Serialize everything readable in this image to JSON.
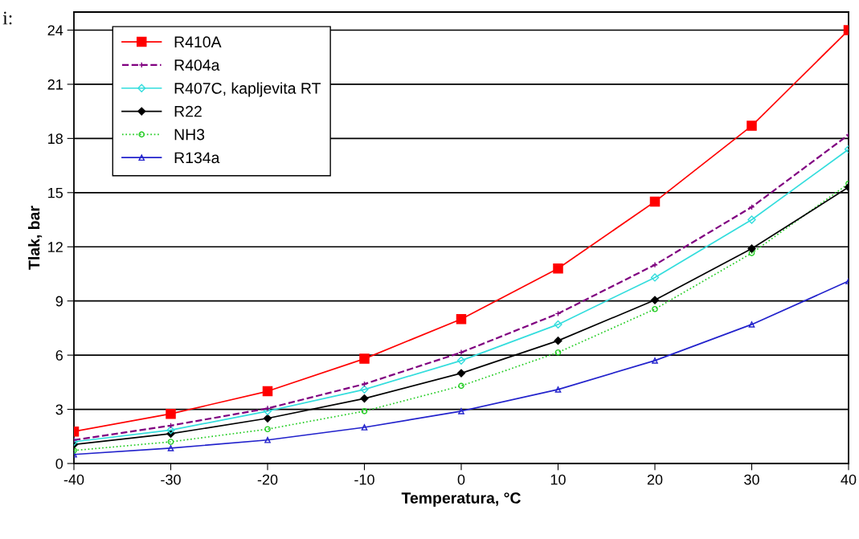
{
  "chart_data": {
    "type": "line",
    "xlabel": "Temperatura, °C",
    "ylabel": "Tlak, bar",
    "x": [
      -40,
      -30,
      -20,
      -10,
      0,
      10,
      20,
      30,
      40
    ],
    "xlim": [
      -40,
      40
    ],
    "xticks": [
      -40,
      -30,
      -20,
      -10,
      0,
      10,
      20,
      30,
      40
    ],
    "ylim": [
      0,
      25
    ],
    "yticks": [
      0,
      3,
      6,
      9,
      12,
      15,
      18,
      21,
      24
    ],
    "grid": "y",
    "legend": "top left",
    "annotations": [
      "i:"
    ],
    "series": [
      {
        "name": "R410A",
        "color": "#ff0000",
        "marker": "square",
        "line_style": "solid",
        "values": [
          1.77,
          2.75,
          4.0,
          5.8,
          8.0,
          10.8,
          14.5,
          18.7,
          24.0
        ]
      },
      {
        "name": "R404a",
        "color": "#800080",
        "marker": "cross",
        "line_style": "dashed",
        "values": [
          1.3,
          2.1,
          3.05,
          4.4,
          6.15,
          8.3,
          11.0,
          14.2,
          18.2
        ]
      },
      {
        "name": "R407C, kapljevita RT",
        "color": "#33dddd",
        "marker": "diamond",
        "line_style": "solid",
        "values": [
          1.2,
          1.85,
          2.9,
          4.1,
          5.7,
          7.7,
          10.3,
          13.5,
          17.4
        ]
      },
      {
        "name": "R22",
        "color": "#000000",
        "marker": "diamond",
        "line_style": "solid",
        "values": [
          1.05,
          1.65,
          2.5,
          3.6,
          5.0,
          6.8,
          9.05,
          11.9,
          15.3
        ]
      },
      {
        "name": "NH3",
        "color": "#22cc22",
        "marker": "circle",
        "line_style": "dotted",
        "values": [
          0.72,
          1.2,
          1.9,
          2.9,
          4.3,
          6.15,
          8.55,
          11.65,
          15.5
        ]
      },
      {
        "name": "R134a",
        "color": "#2222cc",
        "marker": "triangle",
        "line_style": "solid",
        "values": [
          0.5,
          0.85,
          1.3,
          2.0,
          2.9,
          4.1,
          5.7,
          7.7,
          10.1
        ]
      }
    ]
  }
}
